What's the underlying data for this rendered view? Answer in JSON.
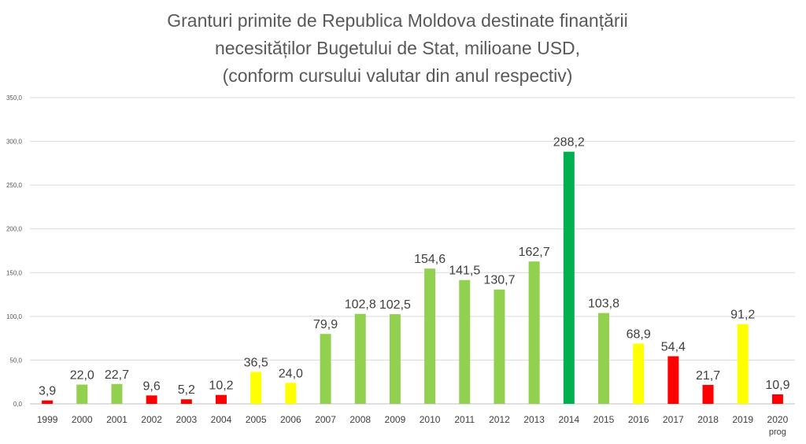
{
  "chart_data": {
    "type": "bar",
    "title_lines": [
      "Granturi primite de Republica Moldova destinate finanțării",
      "necesităților Bugetului de Stat, milioane USD,",
      "(conform cursului valutar din anul respectiv)"
    ],
    "categories": [
      "1999",
      "2000",
      "2001",
      "2002",
      "2003",
      "2004",
      "2005",
      "2006",
      "2007",
      "2008",
      "2009",
      "2010",
      "2011",
      "2012",
      "2013",
      "2014",
      "2015",
      "2016",
      "2017",
      "2018",
      "2019",
      "2020"
    ],
    "category_sublabels": {
      "2020": "prog"
    },
    "values": [
      3.9,
      22.0,
      22.7,
      9.6,
      5.2,
      10.2,
      36.5,
      24.0,
      79.9,
      102.8,
      102.5,
      154.6,
      141.5,
      130.7,
      162.7,
      288.2,
      103.8,
      68.9,
      54.4,
      21.7,
      91.2,
      10.9
    ],
    "data_labels": [
      "3,9",
      "22,0",
      "22,7",
      "9,6",
      "5,2",
      "10,2",
      "36,5",
      "24,0",
      "79,9",
      "102,8",
      "102,5",
      "154,6",
      "141,5",
      "130,7",
      "162,7",
      "288,2",
      "103,8",
      "68,9",
      "54,4",
      "21,7",
      "91,2",
      "10,9"
    ],
    "bar_colors": [
      "#ff0000",
      "#92d050",
      "#92d050",
      "#ff0000",
      "#ff0000",
      "#ff0000",
      "#ffff00",
      "#ffff00",
      "#92d050",
      "#92d050",
      "#92d050",
      "#92d050",
      "#92d050",
      "#92d050",
      "#92d050",
      "#00b050",
      "#92d050",
      "#ffff00",
      "#ff0000",
      "#ff0000",
      "#ffff00",
      "#ff0000"
    ],
    "y_ticks": [
      "0,0",
      "50,0",
      "100,0",
      "150,0",
      "200,0",
      "250,0",
      "300,0",
      "350,0"
    ],
    "ylim": [
      0,
      350
    ],
    "grid": true,
    "legend": "none"
  }
}
